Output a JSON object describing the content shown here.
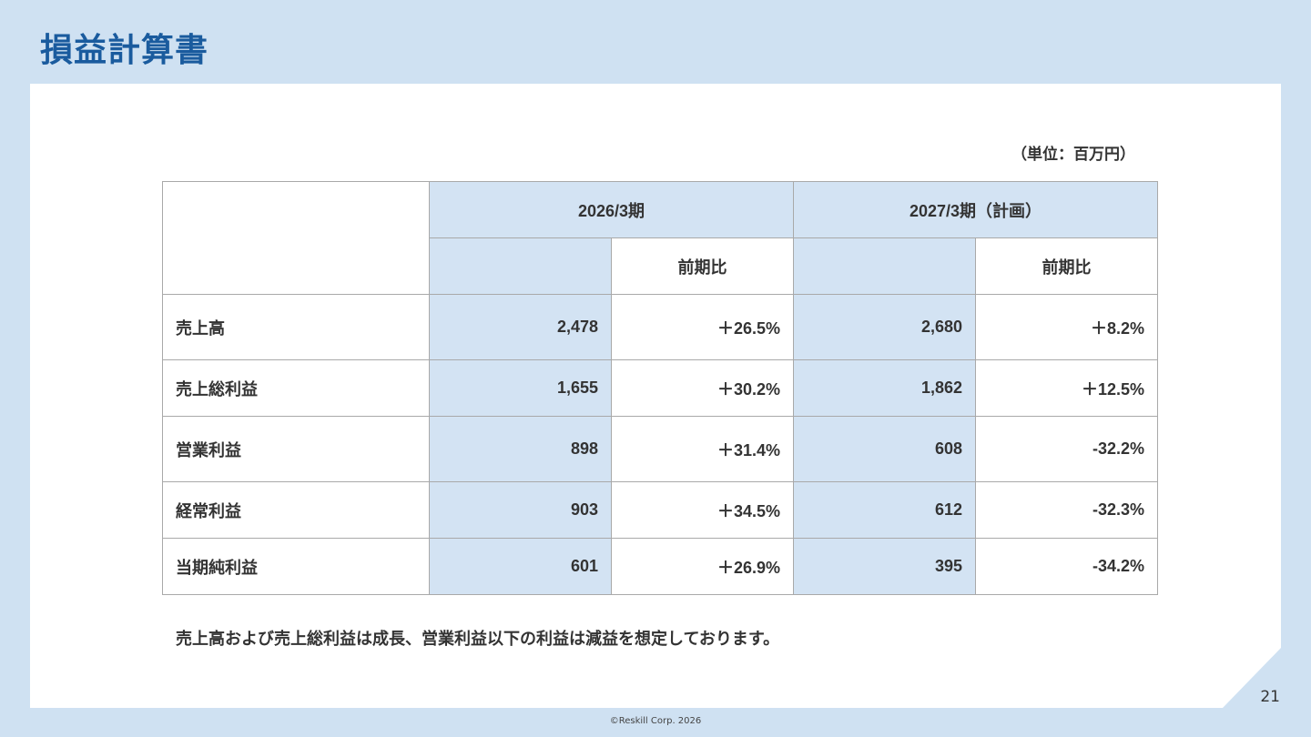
{
  "title": "損益計算書",
  "unit": "（単位：百万円）",
  "table": {
    "period1": "2026/3期",
    "period2": "2027/3期（計画）",
    "yoy": "前期比",
    "rows": [
      {
        "label": "売上高",
        "v1": "2,478",
        "c1": "＋26.5%",
        "v2": "2,680",
        "c2": "＋8.2%"
      },
      {
        "label": "売上総利益",
        "v1": "1,655",
        "c1": "＋30.2%",
        "v2": "1,862",
        "c2": "＋12.5%"
      },
      {
        "label": "営業利益",
        "v1": "898",
        "c1": "＋31.4%",
        "v2": "608",
        "c2": "-32.2%"
      },
      {
        "label": "経常利益",
        "v1": "903",
        "c1": "＋34.5%",
        "v2": "612",
        "c2": "-32.3%"
      },
      {
        "label": "当期純利益",
        "v1": "601",
        "c1": "＋26.9%",
        "v2": "395",
        "c2": "-34.2%"
      }
    ]
  },
  "note": "売上高および売上総利益は成長、営業利益以下の利益は減益を想定しております。",
  "page_number": "21",
  "copyright": "©Reskill Corp. 2026",
  "colors": {
    "background": "#cfe1f2",
    "title": "#1a5b9e",
    "highlight_column": "#d3e3f3",
    "card": "#ffffff"
  }
}
